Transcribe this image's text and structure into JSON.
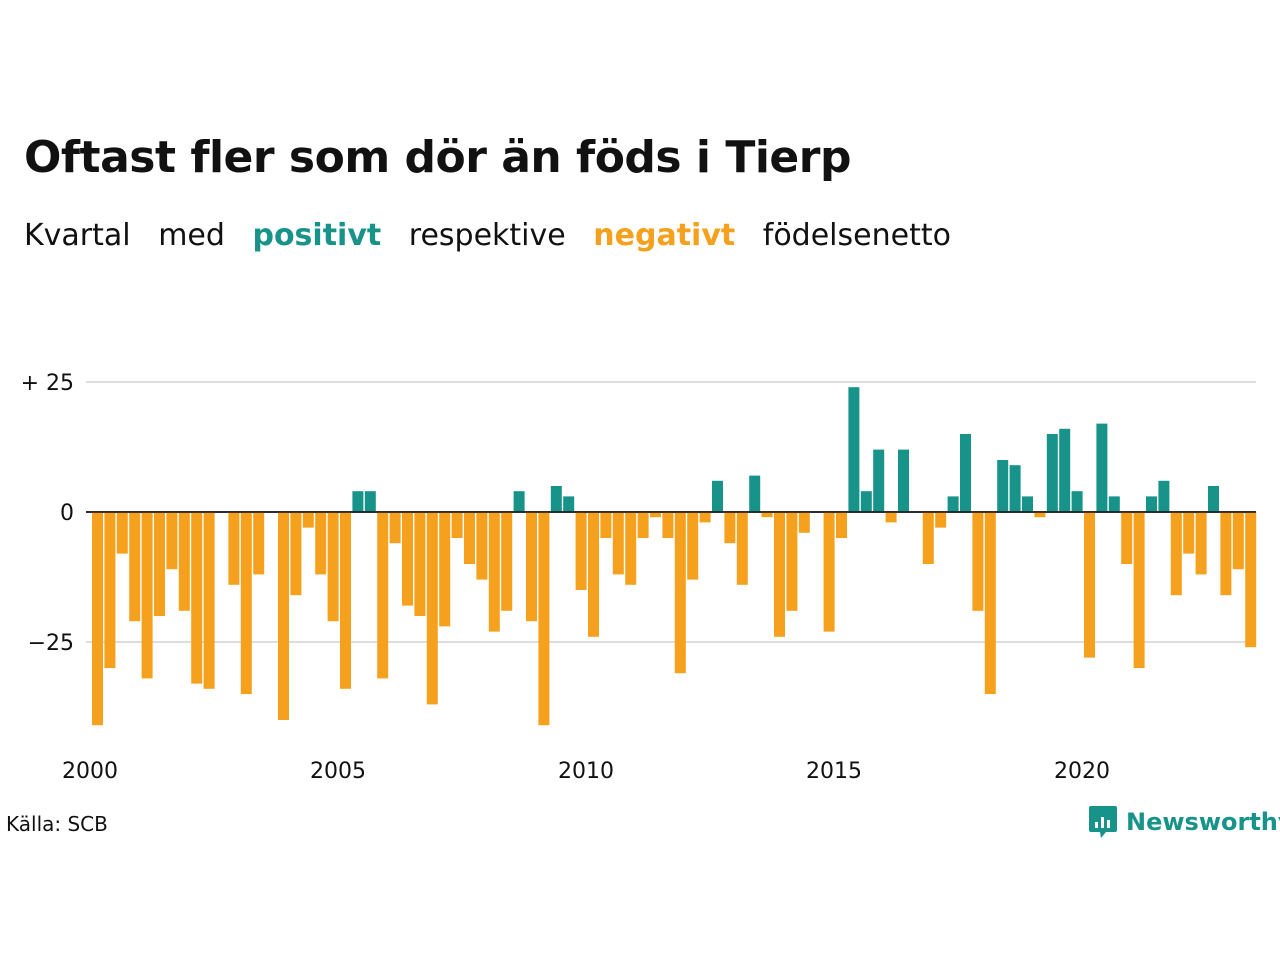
{
  "title": "Oftast fler som dör än föds i Tierp",
  "subtitle": {
    "part1": "Kvartal",
    "part2": "med",
    "positive": "positivt",
    "part3": "respektive",
    "negative": "negativt",
    "part4": "födelsenetto"
  },
  "source": "Källa: SCB",
  "brand": "Newsworthy",
  "colors": {
    "positive": "#17938a",
    "negative": "#f5a11d",
    "grid": "#dddddd",
    "brand": "#17938a"
  },
  "chart_data": {
    "type": "bar",
    "x_start": "2000 Q1",
    "x_ticks": [
      "2000",
      "2005",
      "2010",
      "2015",
      "2020"
    ],
    "y_ticks": [
      25,
      0,
      -25
    ],
    "y_tick_labels": [
      "+ 25",
      "0",
      "−25"
    ],
    "ylim": [
      -42,
      25
    ],
    "grid": true,
    "values": [
      -41,
      -30,
      -8,
      -21,
      -32,
      -20,
      -11,
      -19,
      -33,
      -34,
      0,
      -14,
      -35,
      -12,
      0,
      -40,
      -16,
      -3,
      -12,
      -21,
      -34,
      4,
      4,
      -32,
      -6,
      -18,
      -20,
      -37,
      -22,
      -5,
      -10,
      -13,
      -23,
      -19,
      4,
      -21,
      -41,
      5,
      3,
      -15,
      -24,
      -5,
      -12,
      -14,
      -5,
      -1,
      -5,
      -31,
      -13,
      -2,
      6,
      -6,
      -14,
      7,
      -1,
      -24,
      -19,
      -4,
      0,
      -23,
      -5,
      24,
      4,
      12,
      -2,
      12,
      0,
      -10,
      -3,
      3,
      15,
      -19,
      -35,
      10,
      9,
      3,
      -1,
      15,
      16,
      4,
      -28,
      17,
      3,
      -10,
      -30,
      3,
      6,
      -16,
      -8,
      -12,
      5,
      -16,
      -11,
      -26
    ]
  }
}
